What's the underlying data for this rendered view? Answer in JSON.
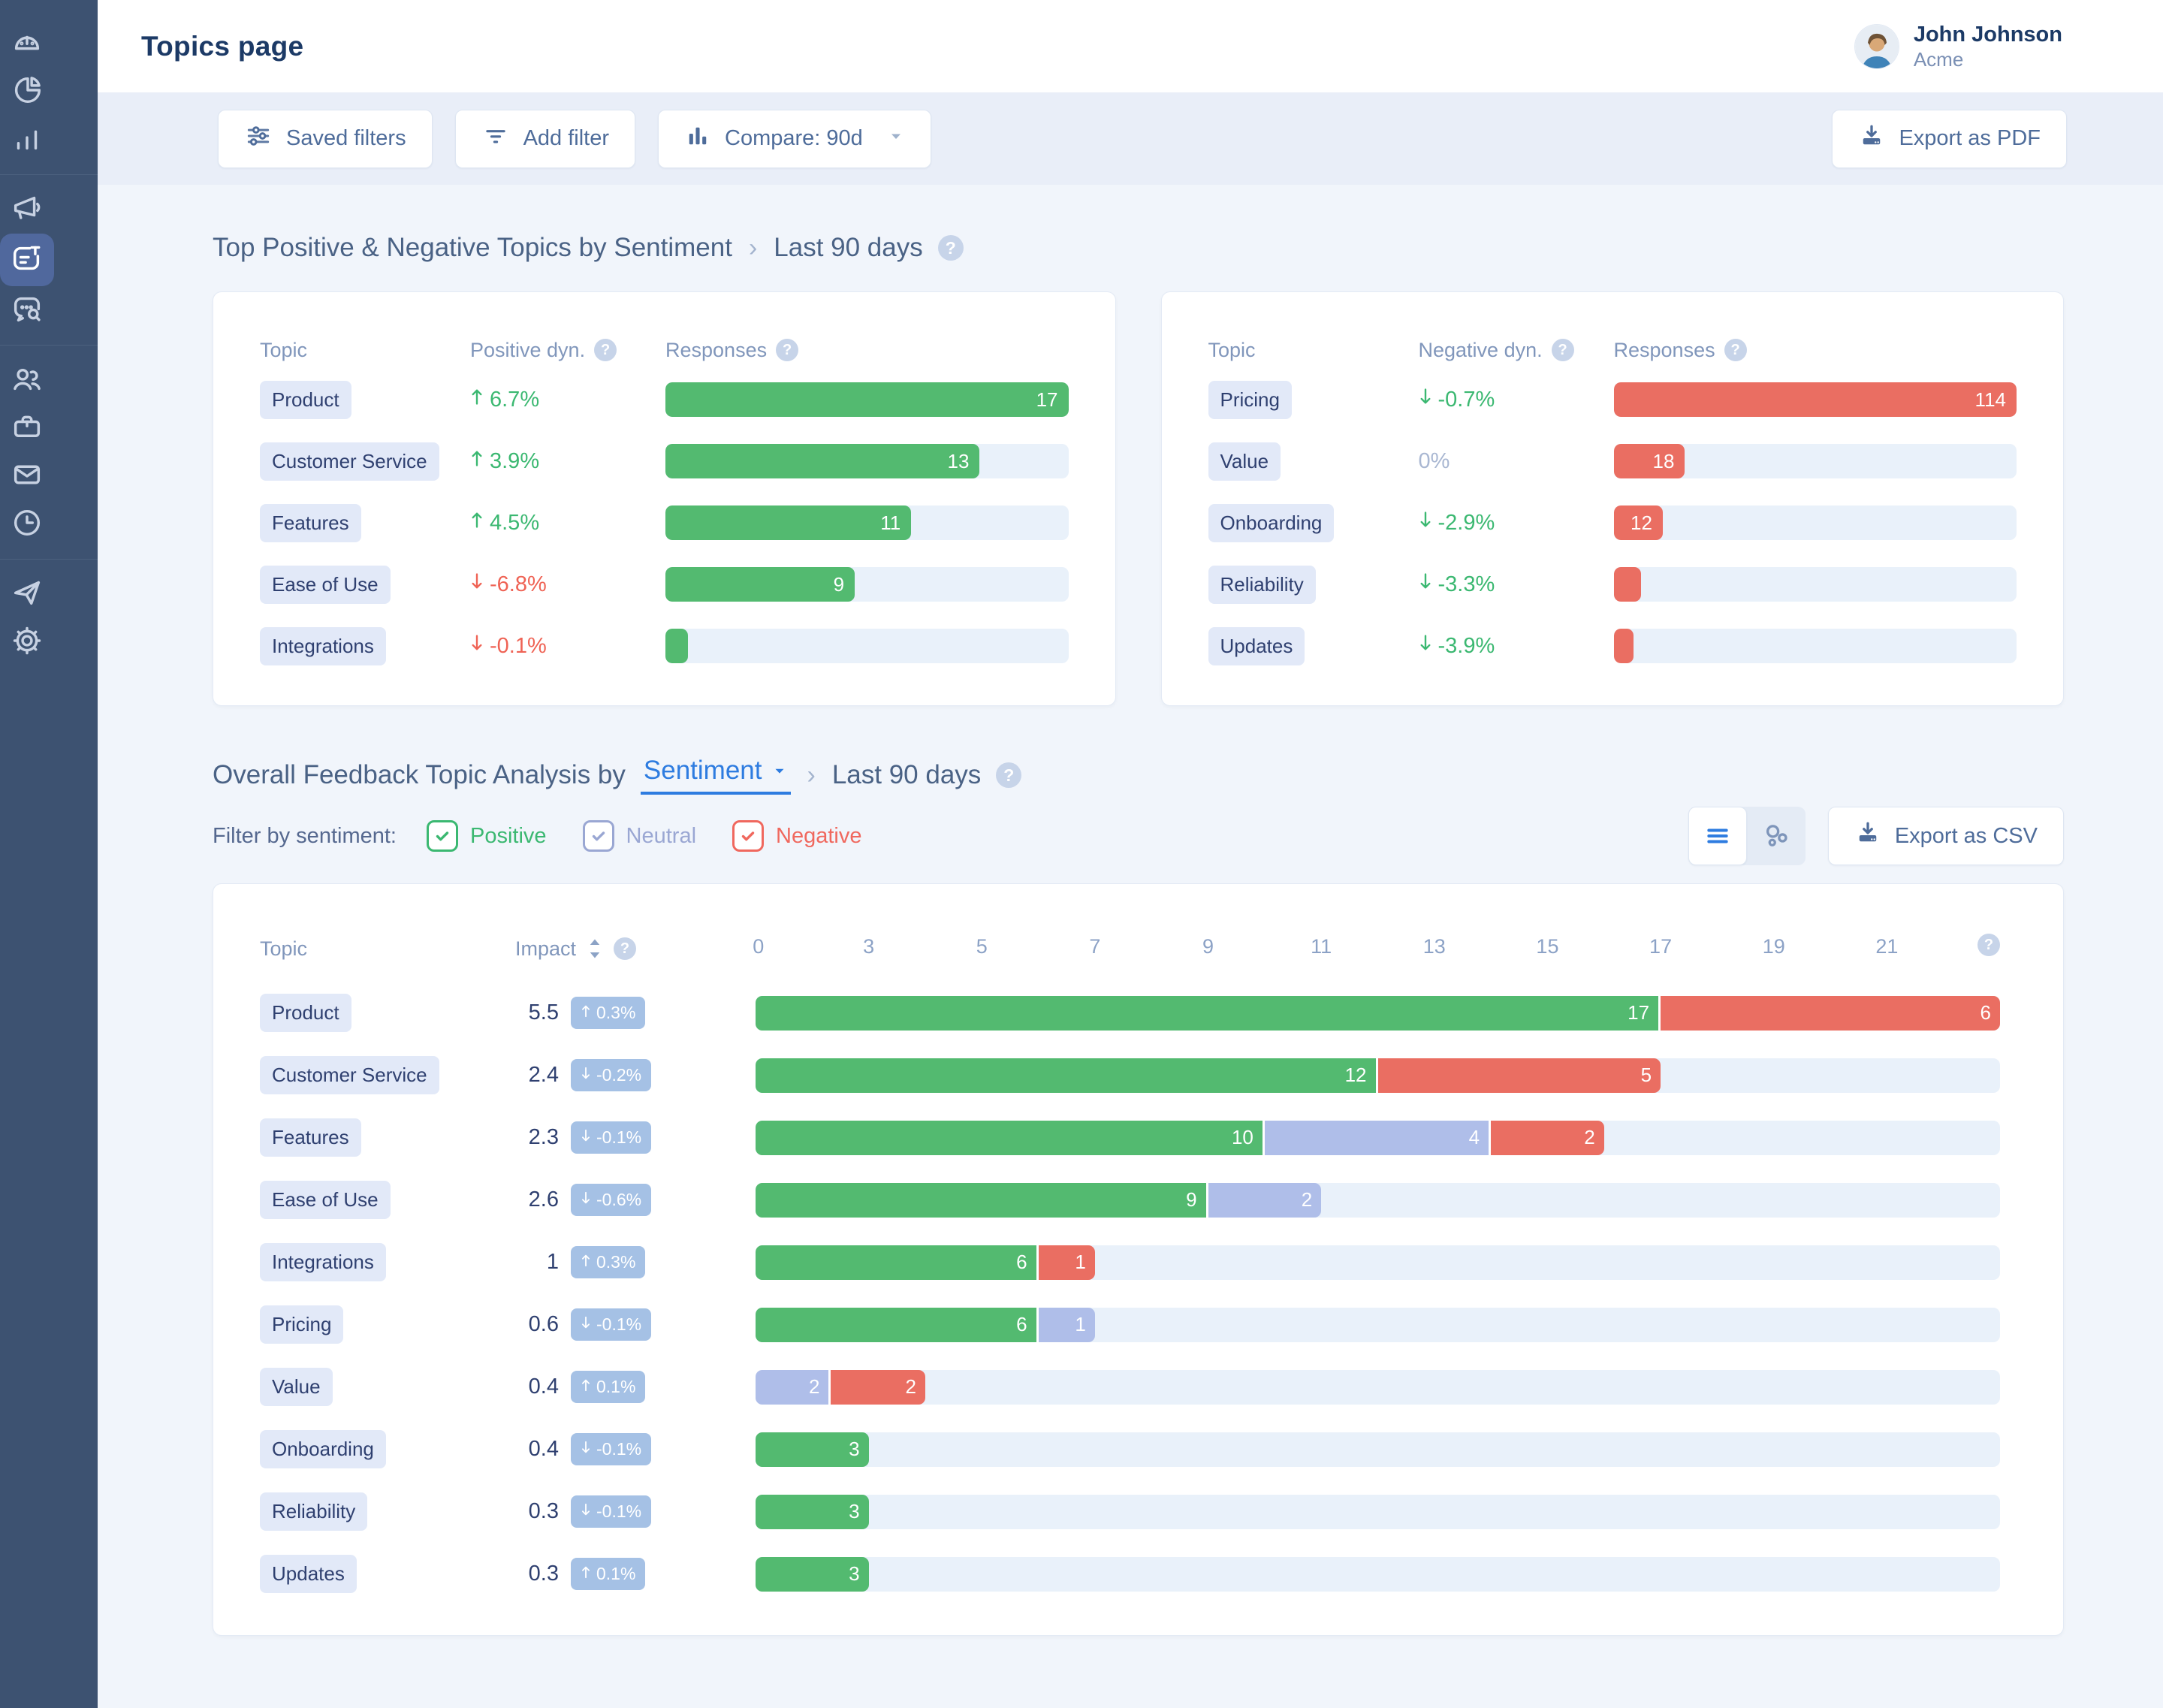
{
  "colors": {
    "accent_blue": "#2E7CE0",
    "positive_green": "#53BA70",
    "negative_red": "#EA6E62",
    "neutral_lavender": "#AFBEE9",
    "badge_blue": "#A5C1E5",
    "bar_track": "#E9F1FA",
    "sidebar_bg": "#3D5271",
    "sidebar_active_bg": "#50689D",
    "navy_text": "#1C3A66"
  },
  "sidebar": {
    "groups": [
      [
        {
          "name": "dashboard",
          "icon": "dashboard-icon",
          "active": false
        },
        {
          "name": "pie-reports",
          "icon": "pie-chart-icon",
          "active": false
        },
        {
          "name": "analytics",
          "icon": "bar-chart-icon",
          "active": false
        }
      ],
      [
        {
          "name": "campaigns",
          "icon": "megaphone-icon",
          "active": false
        },
        {
          "name": "topics",
          "icon": "topics-icon",
          "active": true
        },
        {
          "name": "conversation-search",
          "icon": "conversation-search-icon",
          "active": false
        }
      ],
      [
        {
          "name": "users",
          "icon": "users-icon",
          "active": false
        },
        {
          "name": "workspace",
          "icon": "briefcase-icon",
          "active": false
        },
        {
          "name": "inbox",
          "icon": "mail-icon",
          "active": false
        },
        {
          "name": "history",
          "icon": "clock-icon",
          "active": false
        }
      ],
      [
        {
          "name": "send",
          "icon": "send-icon",
          "active": false
        },
        {
          "name": "settings",
          "icon": "settings-icon",
          "active": false
        }
      ]
    ]
  },
  "header": {
    "title": "Topics page",
    "user": {
      "name": "John Johnson",
      "org": "Acme"
    }
  },
  "filter_bar": {
    "saved_filters": "Saved filters",
    "add_filter": "Add filter",
    "compare": "Compare: 90d",
    "export_pdf": "Export as PDF"
  },
  "sections": {
    "top": {
      "title": "Top Positive & Negative Topics by Sentiment",
      "separator": "›",
      "period": "Last 90 days"
    },
    "main": {
      "title_prefix": "Overall Feedback Topic Analysis by",
      "dropdown_value": "Sentiment",
      "separator": "›",
      "period": "Last 90 days",
      "filter_label": "Filter by sentiment:",
      "filters": [
        {
          "label": "Positive",
          "checked": true,
          "color": "#3BB871"
        },
        {
          "label": "Neutral",
          "checked": true,
          "color": "#9AA7D3"
        },
        {
          "label": "Negative",
          "checked": true,
          "color": "#F0685E"
        }
      ],
      "export_csv": "Export as CSV"
    }
  },
  "top_cards": [
    {
      "columns": {
        "topic": "Topic",
        "dyn": "Positive dyn.",
        "responses": "Responses"
      },
      "bar_type": "positive",
      "rows": [
        {
          "topic": "Product",
          "dyn": {
            "dir": "up",
            "text": "6.7%",
            "tone": "green"
          },
          "bar": {
            "value": 17,
            "label": "17",
            "width_pct": 100
          }
        },
        {
          "topic": "Customer Service",
          "dyn": {
            "dir": "up",
            "text": "3.9%",
            "tone": "green"
          },
          "bar": {
            "value": 13,
            "label": "13",
            "width_pct": 78
          }
        },
        {
          "topic": "Features",
          "dyn": {
            "dir": "up",
            "text": "4.5%",
            "tone": "green"
          },
          "bar": {
            "value": 11,
            "label": "11",
            "width_pct": 61
          }
        },
        {
          "topic": "Ease of Use",
          "dyn": {
            "dir": "down",
            "text": "-6.8%",
            "tone": "red"
          },
          "bar": {
            "value": 9,
            "label": "9",
            "width_pct": 47
          }
        },
        {
          "topic": "Integrations",
          "dyn": {
            "dir": "down",
            "text": "-0.1%",
            "tone": "red"
          },
          "bar": {
            "value": null,
            "label": "",
            "width_pct": 5.5
          }
        }
      ]
    },
    {
      "columns": {
        "topic": "Topic",
        "dyn": "Negative dyn.",
        "responses": "Responses"
      },
      "bar_type": "negative",
      "rows": [
        {
          "topic": "Pricing",
          "dyn": {
            "dir": "down",
            "text": "-0.7%",
            "tone": "green"
          },
          "bar": {
            "value": 114,
            "label": "114",
            "width_pct": 100
          }
        },
        {
          "topic": "Value",
          "dyn": {
            "dir": "none",
            "text": "0%",
            "tone": "gray"
          },
          "bar": {
            "value": 18,
            "label": "18",
            "width_pct": 17.7
          }
        },
        {
          "topic": "Onboarding",
          "dyn": {
            "dir": "down",
            "text": "-2.9%",
            "tone": "green"
          },
          "bar": {
            "value": 12,
            "label": "12",
            "width_pct": 12.2
          }
        },
        {
          "topic": "Reliability",
          "dyn": {
            "dir": "down",
            "text": "-3.3%",
            "tone": "green"
          },
          "bar": {
            "value": null,
            "label": "",
            "width_pct": 6.8
          }
        },
        {
          "topic": "Updates",
          "dyn": {
            "dir": "down",
            "text": "-3.9%",
            "tone": "green"
          },
          "bar": {
            "value": null,
            "label": "",
            "width_pct": 4.9
          }
        }
      ]
    }
  ],
  "main_chart": {
    "type": "stacked-bar",
    "columns": {
      "topic": "Topic",
      "impact": "Impact"
    },
    "axis_ticks": [
      0,
      3,
      5,
      7,
      9,
      11,
      13,
      15,
      17,
      19,
      21
    ],
    "axis_max": 23,
    "rows": [
      {
        "topic": "Product",
        "impact": "5.5",
        "delta": {
          "dir": "up",
          "text": "0.3%"
        },
        "segments": [
          {
            "type": "positive",
            "value": 17,
            "label": "17"
          },
          {
            "type": "negative",
            "value": 6,
            "label": "6"
          }
        ]
      },
      {
        "topic": "Customer Service",
        "impact": "2.4",
        "delta": {
          "dir": "down",
          "text": "-0.2%"
        },
        "segments": [
          {
            "type": "positive",
            "value": 12,
            "label": "12"
          },
          {
            "type": "negative",
            "value": 5,
            "label": "5"
          }
        ]
      },
      {
        "topic": "Features",
        "impact": "2.3",
        "delta": {
          "dir": "down",
          "text": "-0.1%"
        },
        "segments": [
          {
            "type": "positive",
            "value": 10,
            "label": "10"
          },
          {
            "type": "neutral",
            "value": 4,
            "label": "4"
          },
          {
            "type": "negative",
            "value": 2,
            "label": "2"
          }
        ]
      },
      {
        "topic": "Ease of Use",
        "impact": "2.6",
        "delta": {
          "dir": "down",
          "text": "-0.6%"
        },
        "segments": [
          {
            "type": "positive",
            "value": 9,
            "label": "9"
          },
          {
            "type": "neutral",
            "value": 2,
            "label": "2"
          }
        ]
      },
      {
        "topic": "Integrations",
        "impact": "1",
        "delta": {
          "dir": "up",
          "text": "0.3%"
        },
        "segments": [
          {
            "type": "positive",
            "value": 6,
            "label": "6"
          },
          {
            "type": "negative",
            "value": 1,
            "label": "1"
          }
        ]
      },
      {
        "topic": "Pricing",
        "impact": "0.6",
        "delta": {
          "dir": "down",
          "text": "-0.1%"
        },
        "segments": [
          {
            "type": "positive",
            "value": 6,
            "label": "6"
          },
          {
            "type": "neutral",
            "value": 1,
            "label": "1"
          }
        ]
      },
      {
        "topic": "Value",
        "impact": "0.4",
        "delta": {
          "dir": "up",
          "text": "0.1%"
        },
        "segments": [
          {
            "type": "neutral",
            "value": 2,
            "label": "2"
          },
          {
            "type": "negative",
            "value": 2,
            "label": "2"
          }
        ]
      },
      {
        "topic": "Onboarding",
        "impact": "0.4",
        "delta": {
          "dir": "down",
          "text": "-0.1%"
        },
        "segments": [
          {
            "type": "positive",
            "value": 3,
            "label": "3"
          }
        ]
      },
      {
        "topic": "Reliability",
        "impact": "0.3",
        "delta": {
          "dir": "down",
          "text": "-0.1%"
        },
        "segments": [
          {
            "type": "positive",
            "value": 3,
            "label": "3"
          }
        ]
      },
      {
        "topic": "Updates",
        "impact": "0.3",
        "delta": {
          "dir": "up",
          "text": "0.1%"
        },
        "segments": [
          {
            "type": "positive",
            "value": 3,
            "label": "3"
          }
        ]
      }
    ]
  }
}
